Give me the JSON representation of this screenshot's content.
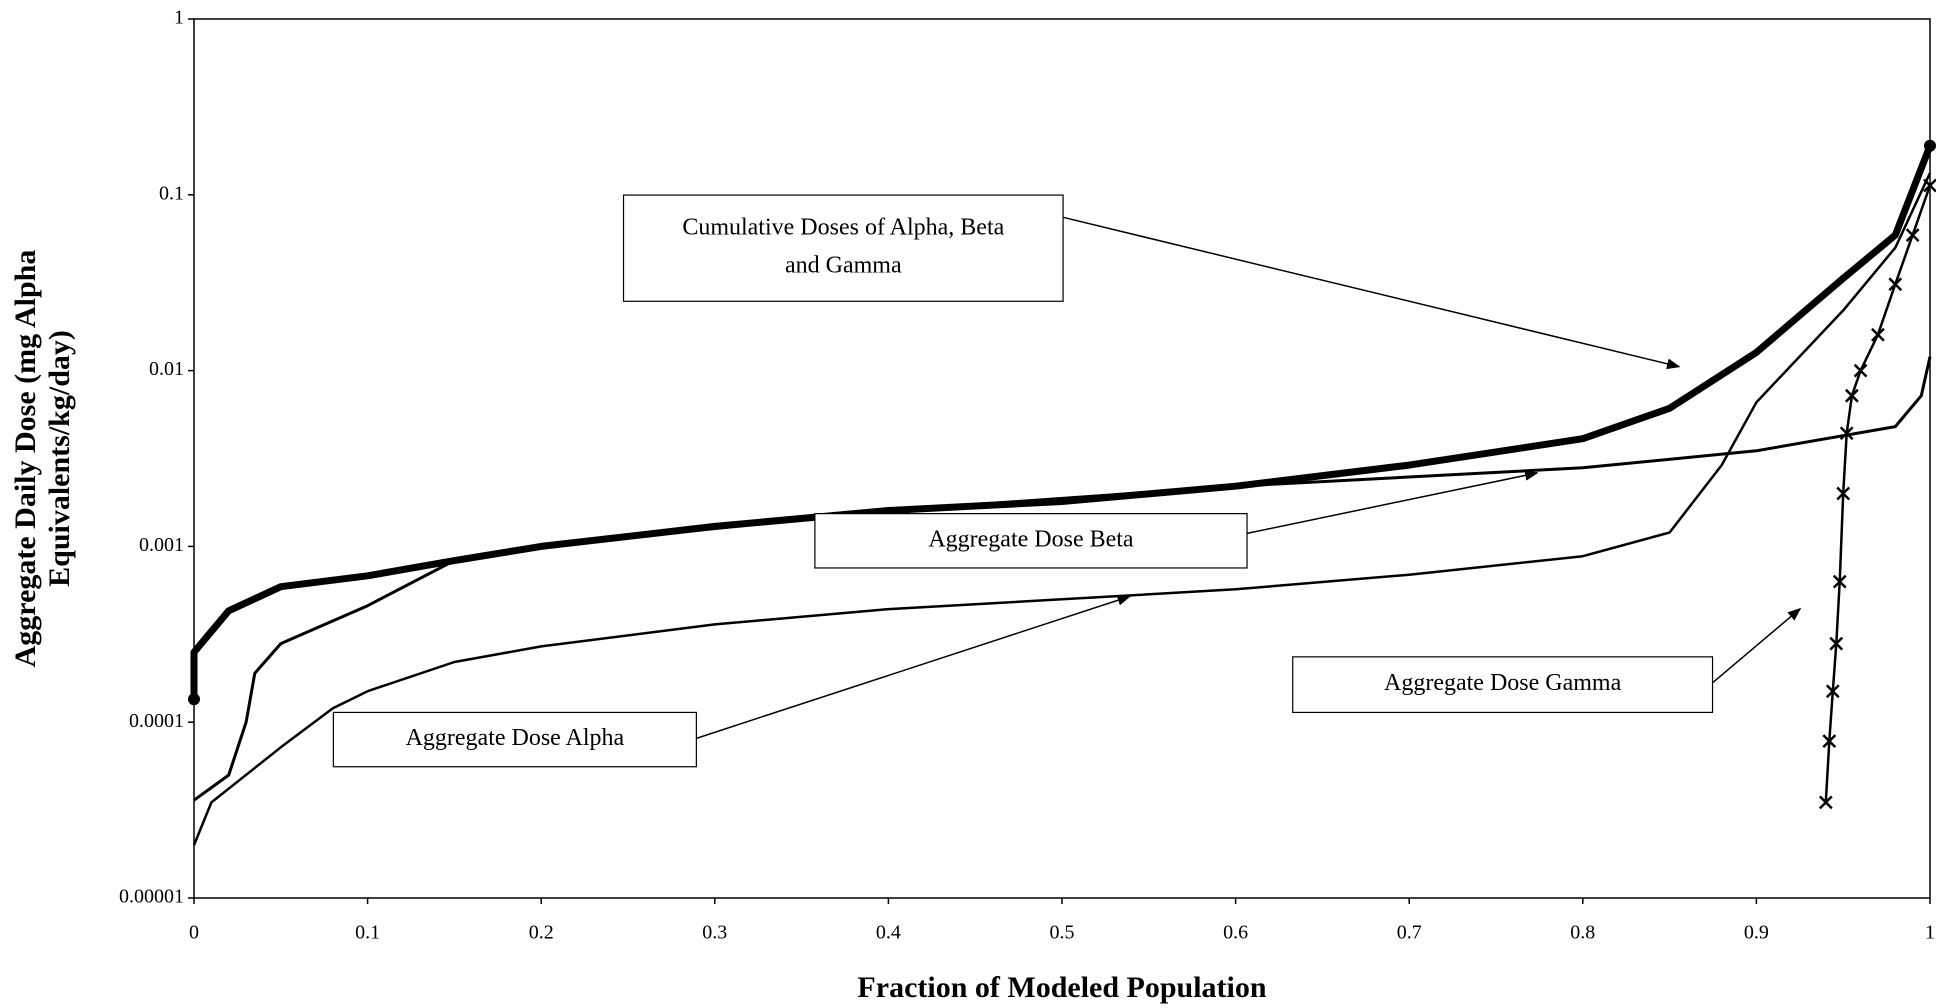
{
  "chart_data": {
    "type": "line",
    "xlabel": "Fraction of Modeled Population",
    "ylabel": [
      "Aggregate Daily Dose (mg Alpha",
      "Equivalents/kg/day)"
    ],
    "xlim": [
      0,
      1
    ],
    "xticks": [
      0,
      0.1,
      0.2,
      0.3,
      0.4,
      0.5,
      0.6,
      0.7,
      0.8,
      0.9,
      1
    ],
    "ylim": [
      1e-05,
      1
    ],
    "yticks": [
      1e-05,
      0.0001,
      0.001,
      0.01,
      0.1,
      1
    ],
    "yscale": "log",
    "series": [
      {
        "color": "#000000",
        "line_width": 7,
        "marker": "dot",
        "x": [
          0,
          0,
          0.02,
          0.05,
          0.1,
          0.15,
          0.2,
          0.3,
          0.4,
          0.5,
          0.6,
          0.7,
          0.8,
          0.85,
          0.9,
          0.95,
          0.98,
          1
        ],
        "values": [
          0.000135,
          0.00025,
          0.00043,
          0.00059,
          0.00068,
          0.00083,
          0.001,
          0.0013,
          0.0016,
          0.0018,
          0.0022,
          0.0029,
          0.0041,
          0.0061,
          0.0127,
          0.0335,
          0.059,
          0.19
        ]
      },
      {
        "color": "#000000",
        "line_width": 3,
        "marker": "none",
        "x": [
          0,
          0.02,
          0.03,
          0.035,
          0.05,
          0.1,
          0.15,
          0.2,
          0.4,
          0.6,
          0.8,
          0.9,
          0.98,
          0.995,
          1
        ],
        "values": [
          3.6e-05,
          5e-05,
          0.0001,
          0.00019,
          0.00028,
          0.00046,
          0.00083,
          0.001,
          0.0016,
          0.0022,
          0.0028,
          0.0035,
          0.0048,
          0.0072,
          0.012
        ]
      },
      {
        "color": "#000000",
        "line_width": 2.5,
        "marker": "none",
        "x": [
          0,
          0.01,
          0.05,
          0.08,
          0.1,
          0.15,
          0.2,
          0.3,
          0.4,
          0.5,
          0.6,
          0.7,
          0.8,
          0.85,
          0.88,
          0.9,
          0.95,
          0.98,
          1
        ],
        "values": [
          2e-05,
          3.5e-05,
          7.2e-05,
          0.00012,
          0.00015,
          0.00022,
          0.00027,
          0.00036,
          0.00044,
          0.0005,
          0.00057,
          0.00069,
          0.00088,
          0.0012,
          0.0029,
          0.0066,
          0.022,
          0.05,
          0.133
        ]
      },
      {
        "color": "#000000",
        "line_width": 2.5,
        "marker": "x",
        "x": [
          0.94,
          0.942,
          0.944,
          0.946,
          0.948,
          0.95,
          0.952,
          0.955,
          0.96,
          0.97,
          0.98,
          0.99,
          1
        ],
        "values": [
          3.5e-05,
          7.8e-05,
          0.00015,
          0.00028,
          0.00063,
          0.002,
          0.0044,
          0.0072,
          0.01,
          0.016,
          0.031,
          0.059,
          0.113
        ]
      }
    ],
    "annotations": [
      {
        "lines": [
          "Cumulative Doses of Alpha, Beta",
          "and Gamma"
        ]
      },
      {
        "lines": [
          "Aggregate Dose Beta"
        ]
      },
      {
        "lines": [
          "Aggregate Dose Alpha"
        ]
      },
      {
        "lines": [
          "Aggregate Dose Gamma"
        ]
      }
    ]
  }
}
